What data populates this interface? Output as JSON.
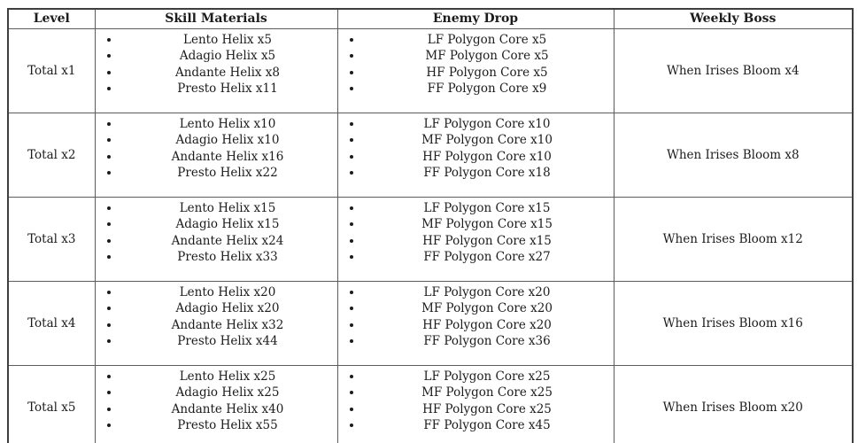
{
  "table": {
    "headers": {
      "level": "Level",
      "skill_materials": "Skill Materials",
      "enemy_drop": "Enemy Drop",
      "weekly_boss": "Weekly Boss"
    },
    "rows": [
      {
        "level": "Total x1",
        "skill_materials": [
          "Lento Helix x5",
          "Adagio Helix x5",
          "Andante Helix x8",
          "Presto Helix x11"
        ],
        "enemy_drop": [
          "LF Polygon Core x5",
          "MF Polygon Core x5",
          "HF Polygon Core x5",
          "FF Polygon Core x9"
        ],
        "weekly_boss": "When Irises Bloom x4"
      },
      {
        "level": "Total x2",
        "skill_materials": [
          "Lento Helix x10",
          "Adagio Helix x10",
          "Andante Helix x16",
          "Presto Helix x22"
        ],
        "enemy_drop": [
          "LF Polygon Core x10",
          "MF Polygon Core x10",
          "HF Polygon Core x10",
          "FF Polygon Core x18"
        ],
        "weekly_boss": "When Irises Bloom x8"
      },
      {
        "level": "Total x3",
        "skill_materials": [
          "Lento Helix x15",
          "Adagio Helix x15",
          "Andante Helix x24",
          "Presto Helix x33"
        ],
        "enemy_drop": [
          "LF Polygon Core x15",
          "MF Polygon Core x15",
          "HF Polygon Core x15",
          "FF Polygon Core x27"
        ],
        "weekly_boss": "When Irises Bloom x12"
      },
      {
        "level": "Total x4",
        "skill_materials": [
          "Lento Helix x20",
          "Adagio Helix x20",
          "Andante Helix x32",
          "Presto Helix x44"
        ],
        "enemy_drop": [
          "LF Polygon Core x20",
          "MF Polygon Core x20",
          "HF Polygon Core x20",
          "FF Polygon Core x36"
        ],
        "weekly_boss": "When Irises Bloom x16"
      },
      {
        "level": "Total x5",
        "skill_materials": [
          "Lento Helix x25",
          "Adagio Helix x25",
          "Andante Helix x40",
          "Presto Helix x55"
        ],
        "enemy_drop": [
          "LF Polygon Core x25",
          "MF Polygon Core x25",
          "HF Polygon Core x25",
          "FF Polygon Core x45"
        ],
        "weekly_boss": "When Irises Bloom x20"
      }
    ]
  },
  "colors": {
    "background": "#ffffff",
    "text": "#1c1c1c",
    "border_outer": "#3f3f3f",
    "border_inner": "#5c5c5c"
  }
}
